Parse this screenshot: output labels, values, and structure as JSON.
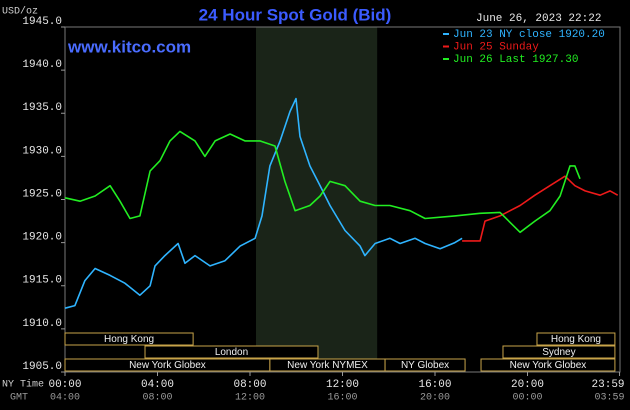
{
  "chart_data": {
    "type": "line",
    "title": "24 Hour Spot Gold (Bid)",
    "y_label": "USD/oz",
    "site": "www.kitco.com",
    "timestamp": "June 26, 2023 22:22",
    "x_label": "NY Time",
    "x2_label": "GMT",
    "xlim": [
      0,
      24
    ],
    "xticks": [
      {
        "value": 0,
        "label": "00:00"
      },
      {
        "value": 4,
        "label": "04:00"
      },
      {
        "value": 8,
        "label": "08:00"
      },
      {
        "value": 12,
        "label": "12:00"
      },
      {
        "value": 16,
        "label": "16:00"
      },
      {
        "value": 20,
        "label": "20:00"
      },
      {
        "value": 23.98,
        "label": "23:59"
      }
    ],
    "gmt_labels": [
      "04:00",
      "08:00",
      "12:00",
      "16:00",
      "20:00",
      "00:00",
      "03:59"
    ],
    "ylim": [
      1905,
      1945
    ],
    "yticks": [
      {
        "value": 1905,
        "label": "1905.0"
      },
      {
        "value": 1910,
        "label": "1910.0"
      },
      {
        "value": 1915,
        "label": "1915.0"
      },
      {
        "value": 1920,
        "label": "1920.0"
      },
      {
        "value": 1925,
        "label": "1925.0"
      },
      {
        "value": 1930,
        "label": "1930.0"
      },
      {
        "value": 1935,
        "label": "1935.0"
      },
      {
        "value": 1940,
        "label": "1940.0"
      },
      {
        "value": 1945,
        "label": "1945.0"
      }
    ],
    "shaded_range": [
      8.26,
      13.5
    ],
    "series": [
      {
        "name": "Jun 23 NY close 1920.20",
        "color": "#2fb4ff",
        "x": [
          0,
          0.43,
          0.86,
          1.3,
          1.95,
          2.59,
          3.24,
          3.68,
          3.89,
          4.32,
          4.89,
          5.19,
          5.62,
          6.27,
          6.92,
          7.57,
          8.22,
          8.52,
          8.86,
          9.3,
          9.73,
          9.99,
          10.16,
          10.59,
          11.03,
          11.46,
          12.11,
          12.76,
          12.97,
          13.41,
          14.05,
          14.49,
          15.14,
          15.57,
          16.22,
          16.86,
          17.17
        ],
        "values": [
          1912.4,
          1912.7,
          1915.6,
          1917.0,
          1916.2,
          1915.3,
          1913.9,
          1915.0,
          1917.3,
          1918.5,
          1919.9,
          1917.6,
          1918.5,
          1917.3,
          1917.9,
          1919.6,
          1920.5,
          1923.1,
          1928.9,
          1931.8,
          1935.2,
          1936.7,
          1932.3,
          1928.9,
          1926.6,
          1924.3,
          1921.4,
          1919.6,
          1918.5,
          1919.9,
          1920.5,
          1919.9,
          1920.5,
          1919.9,
          1919.3,
          1920.0,
          1920.5
        ]
      },
      {
        "name": "Jun 25 Sunday",
        "color": "#ee1a1a",
        "x": [
          17.17,
          17.95,
          18.16,
          18.81,
          19.68,
          20.32,
          20.97,
          21.62,
          22.05,
          22.49,
          23.14,
          23.57,
          23.9
        ],
        "values": [
          1920.2,
          1920.2,
          1922.5,
          1923.1,
          1924.3,
          1925.5,
          1926.6,
          1927.7,
          1926.6,
          1926.0,
          1925.5,
          1926.0,
          1925.5
        ]
      },
      {
        "name": "Jun 26 Last 1927.30",
        "color": "#22ee22",
        "x": [
          0,
          0.65,
          1.3,
          1.95,
          2.38,
          2.81,
          3.24,
          3.68,
          4.11,
          4.54,
          4.97,
          5.62,
          6.05,
          6.49,
          7.14,
          7.78,
          8.43,
          9.08,
          9.51,
          9.95,
          10.59,
          11.03,
          11.46,
          12.11,
          12.76,
          13.41,
          14.05,
          14.92,
          15.57,
          16.86,
          17.95,
          18.81,
          19.68,
          20.32,
          20.97,
          21.41,
          21.84,
          22.05,
          22.27
        ],
        "values": [
          1925.2,
          1924.8,
          1925.4,
          1926.6,
          1924.8,
          1922.8,
          1923.1,
          1928.3,
          1929.5,
          1931.8,
          1932.9,
          1931.8,
          1930.0,
          1931.8,
          1932.6,
          1931.8,
          1931.8,
          1931.2,
          1927.1,
          1923.7,
          1924.3,
          1925.4,
          1927.1,
          1926.6,
          1924.8,
          1924.3,
          1924.3,
          1923.7,
          1922.8,
          1923.1,
          1923.4,
          1923.5,
          1921.2,
          1922.5,
          1923.7,
          1925.4,
          1928.9,
          1928.9,
          1927.4
        ]
      }
    ],
    "sessions": [
      {
        "label": "Hong Kong",
        "row": 0,
        "start": 0,
        "end": 5.54
      },
      {
        "label": "Hong Kong",
        "row": 0,
        "start": 20.41,
        "end": 23.78
      },
      {
        "label": "London",
        "row": 1,
        "start": 3.46,
        "end": 10.94
      },
      {
        "label": "Sydney",
        "row": 1,
        "start": 18.94,
        "end": 23.78
      },
      {
        "label": "New York Globex",
        "row": 2,
        "start": 0,
        "end": 8.86
      },
      {
        "label": "New York NYMEX",
        "row": 2,
        "start": 8.86,
        "end": 13.84
      },
      {
        "label": "NY Globex",
        "row": 2,
        "start": 13.84,
        "end": 17.3
      },
      {
        "label": "New York Globex",
        "row": 2,
        "start": 17.99,
        "end": 23.78
      }
    ]
  }
}
